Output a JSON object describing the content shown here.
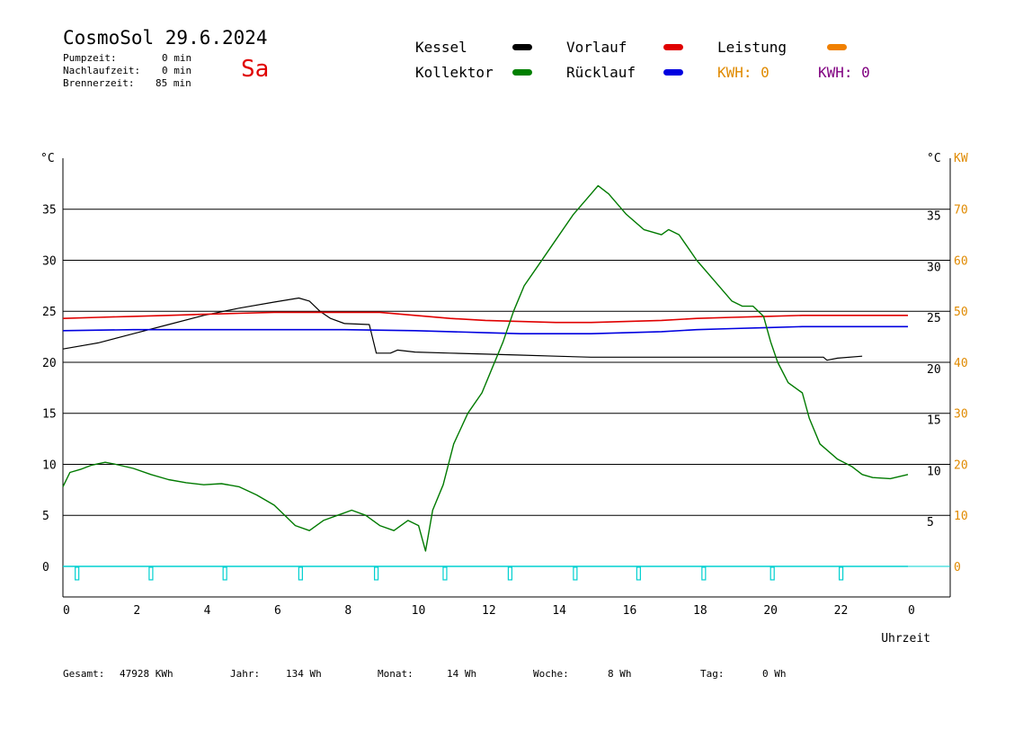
{
  "header": {
    "title": "CosmoSol 29.6.2024",
    "day": "Sa",
    "stats": [
      {
        "label": "Pumpzeit:",
        "value": "0 min"
      },
      {
        "label": "Nachlaufzeit:",
        "value": "0 min"
      },
      {
        "label": "Brennerzeit:",
        "value": "85 min"
      }
    ]
  },
  "legend": {
    "kessel": {
      "label": "Kessel",
      "color": "#000000"
    },
    "kollektor": {
      "label": "Kollektor",
      "color": "#008000"
    },
    "vorlauf": {
      "label": "Vorlauf",
      "color": "#e00000"
    },
    "ruecklauf": {
      "label": "Rücklauf",
      "color": "#0000e0"
    },
    "leistung": {
      "label": "Leistung",
      "color": "#f08000"
    },
    "kwh1": {
      "label": "KWH: 0",
      "color": "#e08a00"
    },
    "kwh2": {
      "label": "KWH: 0",
      "color": "#800080"
    }
  },
  "footer": [
    {
      "label": "Gesamt:",
      "value": "47928 KWh"
    },
    {
      "label": "Jahr:",
      "value": "134 Wh"
    },
    {
      "label": "Monat:",
      "value": "14 Wh"
    },
    {
      "label": "Woche:",
      "value": "8 Wh"
    },
    {
      "label": "Tag:",
      "value": "0 Wh"
    }
  ],
  "chart_data": {
    "type": "line",
    "xlabel": "Uhrzeit",
    "ylabel_left": "°C",
    "ylabel_right_1": "°C",
    "ylabel_right_2": "KW",
    "xlim": [
      0,
      24
    ],
    "ylim": [
      -3,
      40
    ],
    "x_ticks": [
      "0",
      "2",
      "4",
      "6",
      "8",
      "10",
      "12",
      "14",
      "16",
      "18",
      "20",
      "22",
      "0"
    ],
    "y_ticks_left": [
      "0",
      "5",
      "10",
      "15",
      "20",
      "25",
      "30",
      "35"
    ],
    "y_ticks_right": [
      "5",
      "10",
      "15",
      "20",
      "25",
      "30",
      "35"
    ],
    "y_ticks_kw": [
      "0",
      "10",
      "20",
      "30",
      "40",
      "50",
      "60",
      "70"
    ],
    "grid_y": [
      0,
      5,
      10,
      15,
      20,
      25,
      30,
      35
    ],
    "series": [
      {
        "name": "Kessel",
        "color": "#000000",
        "points": [
          [
            0,
            21.3
          ],
          [
            1,
            21.9
          ],
          [
            2,
            22.8
          ],
          [
            3,
            23.7
          ],
          [
            4,
            24.6
          ],
          [
            5,
            25.3
          ],
          [
            6,
            25.9
          ],
          [
            6.7,
            26.3
          ],
          [
            7,
            26.0
          ],
          [
            7.3,
            25.0
          ],
          [
            7.6,
            24.3
          ],
          [
            8,
            23.8
          ],
          [
            8.7,
            23.7
          ],
          [
            8.9,
            20.9
          ],
          [
            9.3,
            20.9
          ],
          [
            9.5,
            21.2
          ],
          [
            10,
            21.0
          ],
          [
            11,
            20.9
          ],
          [
            12,
            20.8
          ],
          [
            13,
            20.7
          ],
          [
            14,
            20.6
          ],
          [
            15,
            20.5
          ],
          [
            16,
            20.5
          ],
          [
            17,
            20.5
          ],
          [
            18,
            20.5
          ],
          [
            19,
            20.5
          ],
          [
            20,
            20.5
          ],
          [
            21,
            20.5
          ],
          [
            21.6,
            20.5
          ],
          [
            21.7,
            20.2
          ],
          [
            22,
            20.4
          ],
          [
            22.7,
            20.6
          ]
        ]
      },
      {
        "name": "Vorlauf",
        "color": "#e00000",
        "points": [
          [
            0,
            24.3
          ],
          [
            1,
            24.4
          ],
          [
            2,
            24.5
          ],
          [
            3,
            24.6
          ],
          [
            4,
            24.7
          ],
          [
            5,
            24.8
          ],
          [
            6,
            24.9
          ],
          [
            7,
            24.9
          ],
          [
            8,
            24.9
          ],
          [
            9,
            24.9
          ],
          [
            10,
            24.6
          ],
          [
            11,
            24.3
          ],
          [
            12,
            24.1
          ],
          [
            13,
            24.0
          ],
          [
            14,
            23.9
          ],
          [
            15,
            23.9
          ],
          [
            16,
            24.0
          ],
          [
            17,
            24.1
          ],
          [
            18,
            24.3
          ],
          [
            19,
            24.4
          ],
          [
            20,
            24.5
          ],
          [
            21,
            24.6
          ],
          [
            22,
            24.6
          ],
          [
            23,
            24.6
          ],
          [
            24,
            24.6
          ]
        ]
      },
      {
        "name": "Rücklauf",
        "color": "#0000e0",
        "points": [
          [
            0,
            23.1
          ],
          [
            2,
            23.2
          ],
          [
            4,
            23.2
          ],
          [
            6,
            23.2
          ],
          [
            8,
            23.2
          ],
          [
            10,
            23.1
          ],
          [
            11,
            23.0
          ],
          [
            12,
            22.9
          ],
          [
            13,
            22.8
          ],
          [
            14,
            22.8
          ],
          [
            15,
            22.8
          ],
          [
            16,
            22.9
          ],
          [
            17,
            23.0
          ],
          [
            18,
            23.2
          ],
          [
            19,
            23.3
          ],
          [
            20,
            23.4
          ],
          [
            21,
            23.5
          ],
          [
            22,
            23.5
          ],
          [
            24,
            23.5
          ]
        ]
      },
      {
        "name": "Kollektor",
        "color": "#007a00",
        "points": [
          [
            0,
            7.8
          ],
          [
            0.2,
            9.2
          ],
          [
            0.5,
            9.5
          ],
          [
            0.8,
            9.9
          ],
          [
            1.2,
            10.2
          ],
          [
            1.5,
            10.0
          ],
          [
            2,
            9.6
          ],
          [
            2.5,
            9.0
          ],
          [
            3,
            8.5
          ],
          [
            3.5,
            8.2
          ],
          [
            4,
            8.0
          ],
          [
            4.5,
            8.1
          ],
          [
            5,
            7.8
          ],
          [
            5.5,
            7.0
          ],
          [
            6,
            6.0
          ],
          [
            6.3,
            5.0
          ],
          [
            6.6,
            4.0
          ],
          [
            7,
            3.5
          ],
          [
            7.4,
            4.5
          ],
          [
            7.8,
            5.0
          ],
          [
            8.2,
            5.5
          ],
          [
            8.6,
            5.0
          ],
          [
            9,
            4.0
          ],
          [
            9.4,
            3.5
          ],
          [
            9.8,
            4.5
          ],
          [
            10.1,
            4.0
          ],
          [
            10.3,
            1.5
          ],
          [
            10.5,
            5.5
          ],
          [
            10.8,
            8.0
          ],
          [
            11.1,
            12.0
          ],
          [
            11.5,
            15.0
          ],
          [
            11.9,
            17.0
          ],
          [
            12.2,
            19.5
          ],
          [
            12.5,
            22.0
          ],
          [
            12.8,
            25.0
          ],
          [
            13.1,
            27.5
          ],
          [
            13.5,
            29.5
          ],
          [
            14,
            32.0
          ],
          [
            14.5,
            34.5
          ],
          [
            15,
            36.5
          ],
          [
            15.2,
            37.3
          ],
          [
            15.5,
            36.5
          ],
          [
            16,
            34.5
          ],
          [
            16.5,
            33.0
          ],
          [
            17,
            32.5
          ],
          [
            17.2,
            33.0
          ],
          [
            17.5,
            32.5
          ],
          [
            18,
            30.0
          ],
          [
            18.5,
            28.0
          ],
          [
            19,
            26.0
          ],
          [
            19.3,
            25.5
          ],
          [
            19.6,
            25.5
          ],
          [
            19.9,
            24.5
          ],
          [
            20.1,
            22.0
          ],
          [
            20.3,
            20.0
          ],
          [
            20.6,
            18.0
          ],
          [
            21,
            17.0
          ],
          [
            21.2,
            14.5
          ],
          [
            21.5,
            12.0
          ],
          [
            22,
            10.5
          ],
          [
            22.4,
            9.8
          ],
          [
            22.7,
            9.0
          ],
          [
            23,
            8.7
          ],
          [
            23.5,
            8.6
          ],
          [
            24,
            9.0
          ]
        ]
      },
      {
        "name": "Leistung",
        "color": "#00d0d0",
        "points": [
          [
            0,
            0
          ],
          [
            24,
            0
          ]
        ],
        "pulse_hours": [
          0.4,
          2.5,
          4.6,
          6.75,
          8.9,
          10.85,
          12.7,
          14.55,
          16.35,
          18.2,
          20.15,
          22.1
        ]
      }
    ]
  }
}
